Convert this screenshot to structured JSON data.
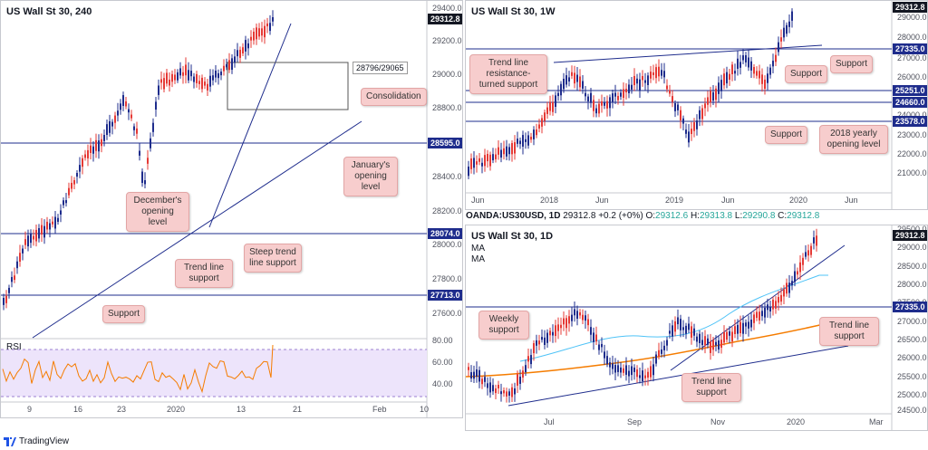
{
  "left_panel": {
    "title": "US Wall St 30, 240",
    "price_axis": [
      "29400.0",
      "29200.0",
      "29000.0",
      "28800.0",
      "28400.0",
      "28200.0",
      "28000.0",
      "27800.0",
      "27600.0",
      "80.00",
      "60.00",
      "40.00"
    ],
    "price_tags": [
      "29312.8",
      "28595.0",
      "28074.0",
      "27713.0"
    ],
    "time_axis": [
      "9",
      "16",
      "23",
      "2020",
      "13",
      "21",
      "Feb",
      "10"
    ],
    "consolidation_box": "28796/29065",
    "annotations": [
      "Consolidation",
      "January's opening level",
      "December's opening level",
      "Steep trend line support",
      "Trend line support",
      "Support"
    ],
    "rsi_label": "RSI"
  },
  "top_right_panel": {
    "title": "US Wall St 30, 1W",
    "price_axis": [
      "29000.0",
      "28000.0",
      "27000.0",
      "26000.0",
      "24000.0",
      "23000.0",
      "22000.0",
      "21000.0"
    ],
    "price_tags": [
      "29312.8",
      "27335.0",
      "25251.0",
      "24660.0",
      "23578.0"
    ],
    "time_axis": [
      "Jun",
      "2018",
      "Jun",
      "2019",
      "Jun",
      "2020",
      "Jun"
    ],
    "annotations": [
      "Trend line resistance-turned support",
      "Support",
      "Support",
      "Support",
      "2018 yearly opening level"
    ]
  },
  "ohlc_bar": {
    "symbol": "OANDA:US30USD, 1D",
    "last": "29312.8",
    "change": "+0.2 (+0%)",
    "o_label": "O:",
    "o": "29312.6",
    "h_label": "H:",
    "h": "29313.8",
    "l_label": "L:",
    "l": "29290.8",
    "c_label": "C:",
    "c": "29312.8"
  },
  "bottom_right_panel": {
    "title": "US Wall St 30, 1D",
    "ma1": "MA",
    "ma2": "MA",
    "price_axis": [
      "29500.0",
      "29000.0",
      "28500.0",
      "28000.0",
      "27500.0",
      "27000.0",
      "26500.0",
      "26000.0",
      "25500.0",
      "25000.0",
      "24500.0"
    ],
    "price_tags": [
      "29312.8",
      "27335.0"
    ],
    "time_axis": [
      "Jul",
      "Sep",
      "Nov",
      "2020",
      "Mar"
    ],
    "annotations": [
      "Weekly support",
      "Trend line support",
      "Trend line support"
    ]
  },
  "footer": {
    "brand": "TradingView"
  },
  "chart_data": [
    {
      "type": "candlestick",
      "title": "US Wall St 30, 240",
      "x_ticks": [
        "9",
        "16",
        "23",
        "2020",
        "13",
        "21",
        "Feb",
        "10"
      ],
      "ylim": [
        27500,
        29400
      ],
      "levels": [
        28595.0,
        28074.0,
        27713.0
      ],
      "last": 29312.8,
      "consolidation_range": [
        28796,
        29065
      ],
      "indicator": {
        "name": "RSI",
        "ylim": [
          30,
          85
        ],
        "levels": [
          70,
          30
        ]
      }
    },
    {
      "type": "candlestick",
      "title": "US Wall St 30, 1W",
      "x_ticks": [
        "Jun",
        "2018",
        "Jun",
        "2019",
        "Jun",
        "2020",
        "Jun"
      ],
      "ylim": [
        20000,
        29500
      ],
      "levels": [
        27335.0,
        25251.0,
        24660.0,
        23578.0
      ],
      "last": 29312.8
    },
    {
      "type": "candlestick",
      "title": "US Wall St 30, 1D",
      "x_ticks": [
        "Jul",
        "Sep",
        "Nov",
        "2020",
        "Mar"
      ],
      "ylim": [
        24500,
        29500
      ],
      "levels": [
        27335.0
      ],
      "last": 29312.8,
      "series": [
        {
          "name": "MA"
        },
        {
          "name": "MA"
        }
      ]
    }
  ]
}
